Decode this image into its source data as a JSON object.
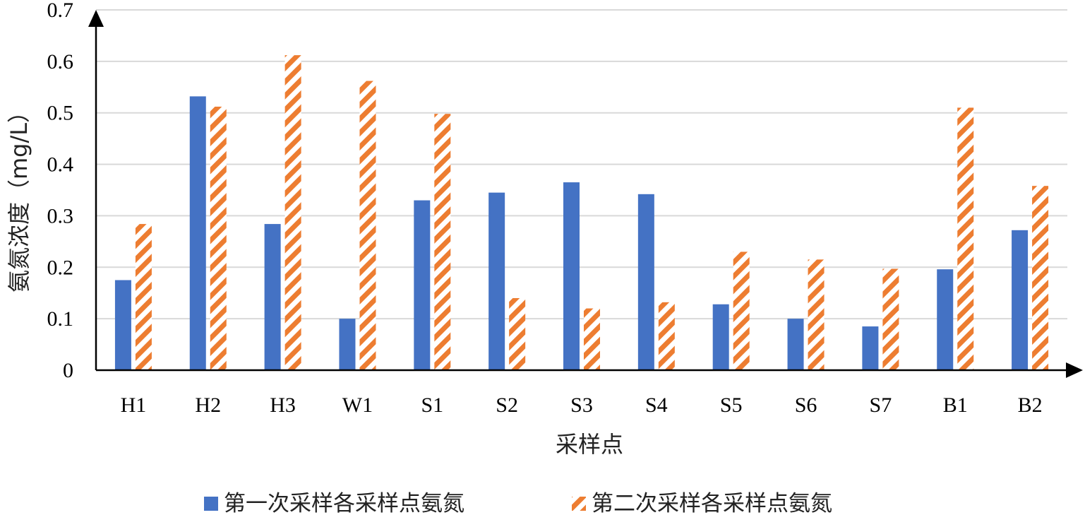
{
  "chart_data": {
    "type": "bar",
    "title": "",
    "xlabel": "采样点",
    "ylabel": "氨氮浓度（mg/L）",
    "ylim": [
      0,
      0.7
    ],
    "yticks": [
      "0",
      "0.1",
      "0.2",
      "0.3",
      "0.4",
      "0.5",
      "0.6",
      "0.7"
    ],
    "grid": true,
    "legend_position": "bottom",
    "categories": [
      "H1",
      "H2",
      "H3",
      "W1",
      "S1",
      "S2",
      "S3",
      "S4",
      "S5",
      "S6",
      "S7",
      "B1",
      "B2"
    ],
    "series": [
      {
        "name": "第一次采样各采样点氨氮",
        "color": "#4472C4",
        "pattern": "solid",
        "values": [
          0.175,
          0.532,
          0.284,
          0.1,
          0.33,
          0.345,
          0.365,
          0.342,
          0.128,
          0.1,
          0.085,
          0.196,
          0.272
        ]
      },
      {
        "name": "第二次采样各采样点氨氮",
        "color": "#ED7D31",
        "pattern": "diagonal-stripes",
        "values": [
          0.284,
          0.512,
          0.612,
          0.562,
          0.498,
          0.14,
          0.12,
          0.132,
          0.23,
          0.215,
          0.197,
          0.51,
          0.358
        ]
      }
    ]
  }
}
